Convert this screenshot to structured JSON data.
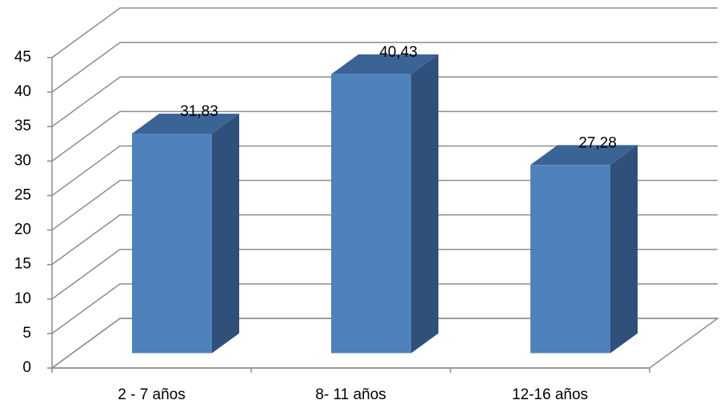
{
  "chart_data": {
    "type": "bar3d",
    "categories": [
      "2 - 7 años",
      "8- 11 años",
      "12-16 años"
    ],
    "values": [
      31.83,
      40.43,
      27.28
    ],
    "value_labels": [
      "31,83",
      "40,43",
      "27,28"
    ],
    "color": "#4f81bd",
    "ylim": [
      0,
      45
    ],
    "yticks": [
      0,
      5,
      10,
      15,
      20,
      25,
      30,
      35,
      40,
      45
    ],
    "grid": true
  }
}
